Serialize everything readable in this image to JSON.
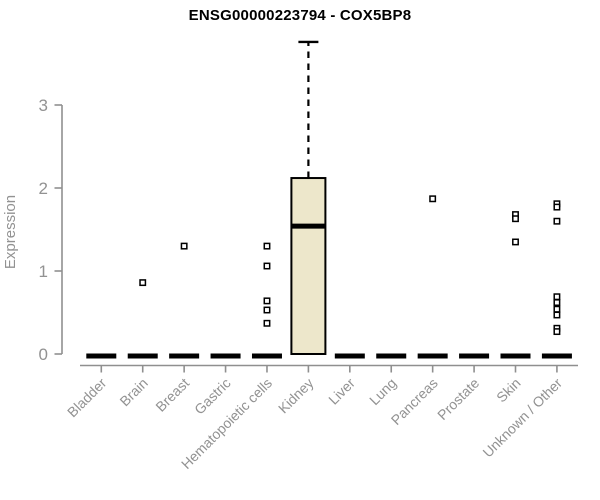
{
  "title": "ENSG00000223794 - COX5BP8",
  "colors": {
    "box_fill": "#EDE7CB",
    "box_stroke": "#000000",
    "axis": "#8F8F8F",
    "tick_label": "#929292",
    "title_text": "#000000"
  },
  "chart_data": {
    "type": "box",
    "title": "ENSG00000223794 - COX5BP8",
    "xlabel": "",
    "ylabel": "Expression",
    "ylim": [
      0,
      3.9
    ],
    "yticks": [
      0,
      1,
      2,
      3
    ],
    "grid": false,
    "legend": "none",
    "categories": [
      "Bladder",
      "Brain",
      "Breast",
      "Gastric",
      "Hematopoietic cells",
      "Kidney",
      "Liver",
      "Lung",
      "Pancreas",
      "Prostate",
      "Skin",
      "Unknown / Other"
    ],
    "boxes": [
      {
        "category": "Bladder",
        "q1": 0,
        "median": 0,
        "q3": 0,
        "whisker_low": 0,
        "whisker_high": 0,
        "outliers": []
      },
      {
        "category": "Brain",
        "q1": 0,
        "median": 0,
        "q3": 0,
        "whisker_low": 0,
        "whisker_high": 0,
        "outliers": [
          0.86
        ]
      },
      {
        "category": "Breast",
        "q1": 0,
        "median": 0,
        "q3": 0,
        "whisker_low": 0,
        "whisker_high": 0,
        "outliers": [
          1.3
        ]
      },
      {
        "category": "Gastric",
        "q1": 0,
        "median": 0,
        "q3": 0,
        "whisker_low": 0,
        "whisker_high": 0,
        "outliers": []
      },
      {
        "category": "Hematopoietic cells",
        "q1": 0,
        "median": 0,
        "q3": 0,
        "whisker_low": 0,
        "whisker_high": 0,
        "outliers": [
          1.3,
          1.06,
          0.64,
          0.53,
          0.37
        ]
      },
      {
        "category": "Kidney",
        "q1": 0,
        "median": 1.54,
        "q3": 2.12,
        "whisker_low": 0,
        "whisker_high": 3.76,
        "outliers": []
      },
      {
        "category": "Liver",
        "q1": 0,
        "median": 0,
        "q3": 0,
        "whisker_low": 0,
        "whisker_high": 0,
        "outliers": []
      },
      {
        "category": "Lung",
        "q1": 0,
        "median": 0,
        "q3": 0,
        "whisker_low": 0,
        "whisker_high": 0,
        "outliers": []
      },
      {
        "category": "Pancreas",
        "q1": 0,
        "median": 0,
        "q3": 0,
        "whisker_low": 0,
        "whisker_high": 0,
        "outliers": [
          1.87
        ]
      },
      {
        "category": "Prostate",
        "q1": 0,
        "median": 0,
        "q3": 0,
        "whisker_low": 0,
        "whisker_high": 0,
        "outliers": []
      },
      {
        "category": "Skin",
        "q1": 0,
        "median": 0,
        "q3": 0,
        "whisker_low": 0,
        "whisker_high": 0,
        "outliers": [
          1.68,
          1.63,
          1.35
        ]
      },
      {
        "category": "Unknown / Other",
        "q1": 0,
        "median": 0,
        "q3": 0,
        "whisker_low": 0,
        "whisker_high": 0,
        "outliers": [
          1.81,
          1.77,
          1.6,
          0.69,
          0.62,
          0.54,
          0.47,
          0.31,
          0.27
        ]
      }
    ]
  }
}
